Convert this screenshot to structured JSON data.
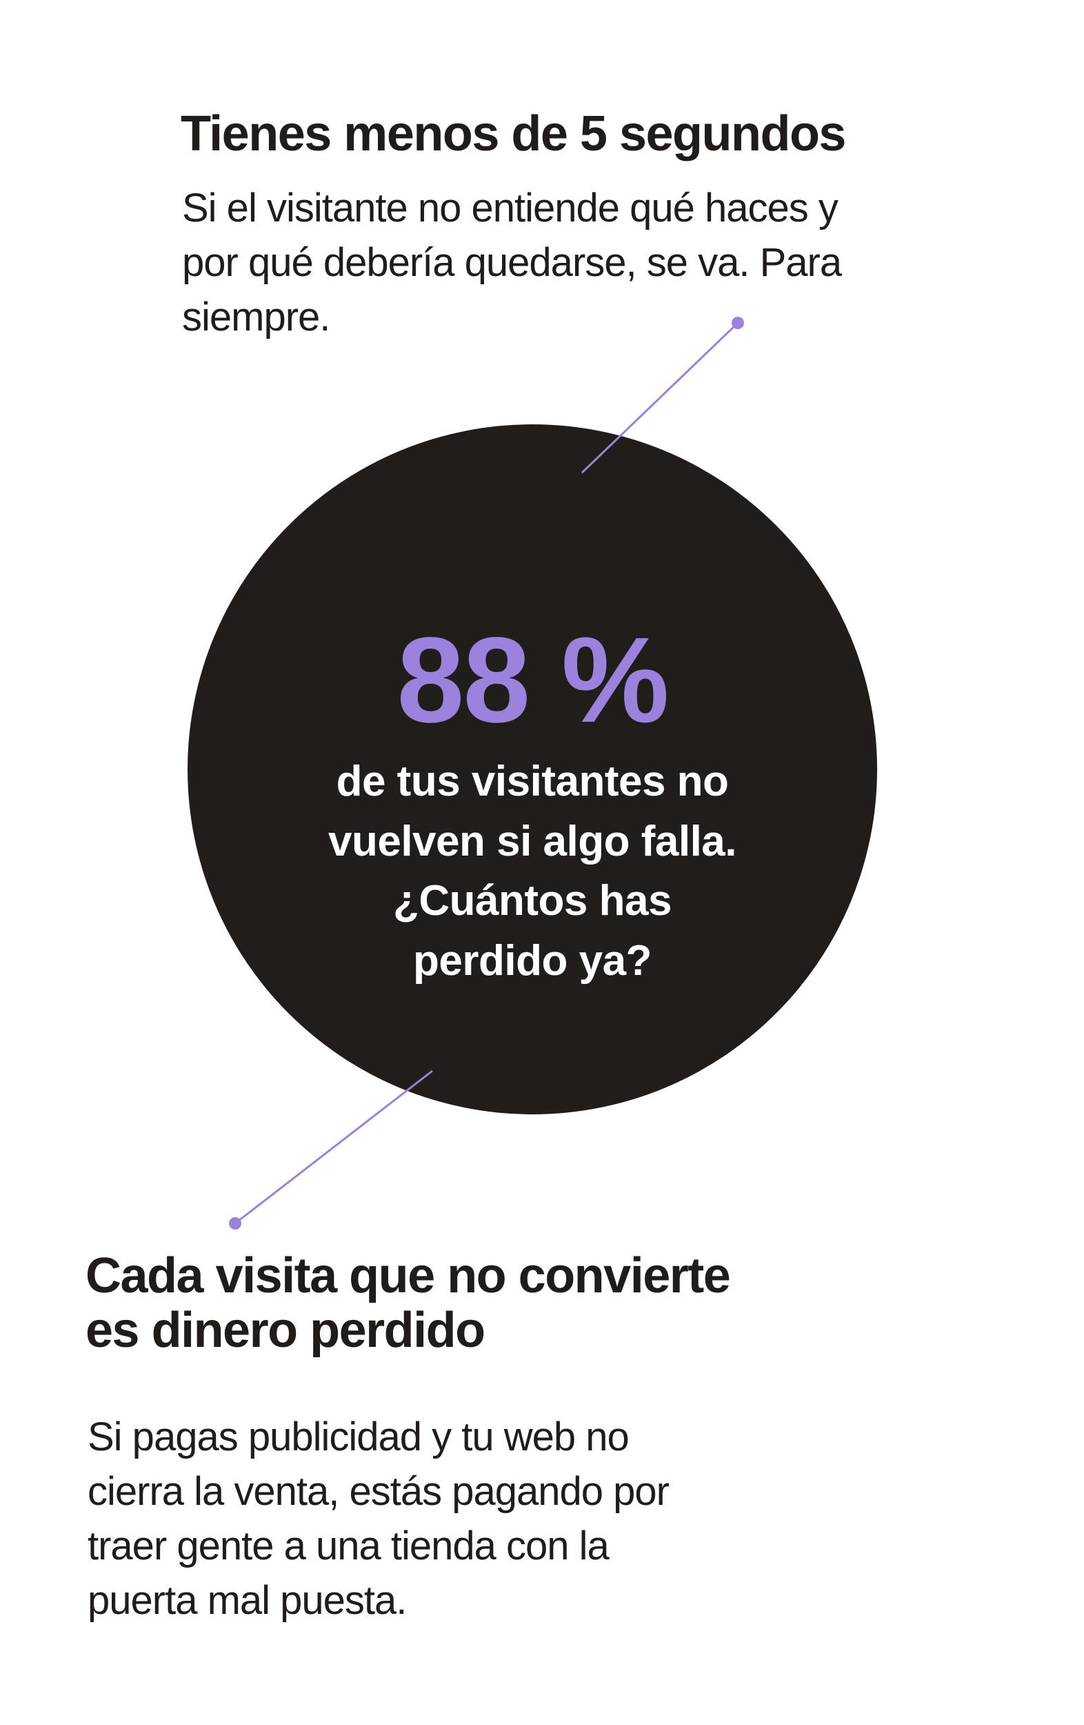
{
  "section1": {
    "heading": "Tienes menos de 5 segundos",
    "paragraph_lines": [
      "Si el visitante no entiende qué haces y",
      "por qué debería quedarse, se va. Para",
      "siempre."
    ]
  },
  "stat": {
    "value": "88 %",
    "caption_lines": [
      "de tus visitantes no",
      "vuelven si algo falla.",
      "¿Cuántos has",
      "perdido ya?"
    ]
  },
  "section2": {
    "heading_lines": [
      "Cada visita que no convierte",
      "es dinero perdido"
    ],
    "paragraph_lines": [
      "Si pagas publicidad y tu web no",
      "cierra la venta, estás pagando por",
      "traer gente a una tienda con la",
      "puerta mal puesta."
    ]
  },
  "colors": {
    "accent": "#9b82dc",
    "circle": "#201d1b",
    "text": "#1f1c1a"
  }
}
